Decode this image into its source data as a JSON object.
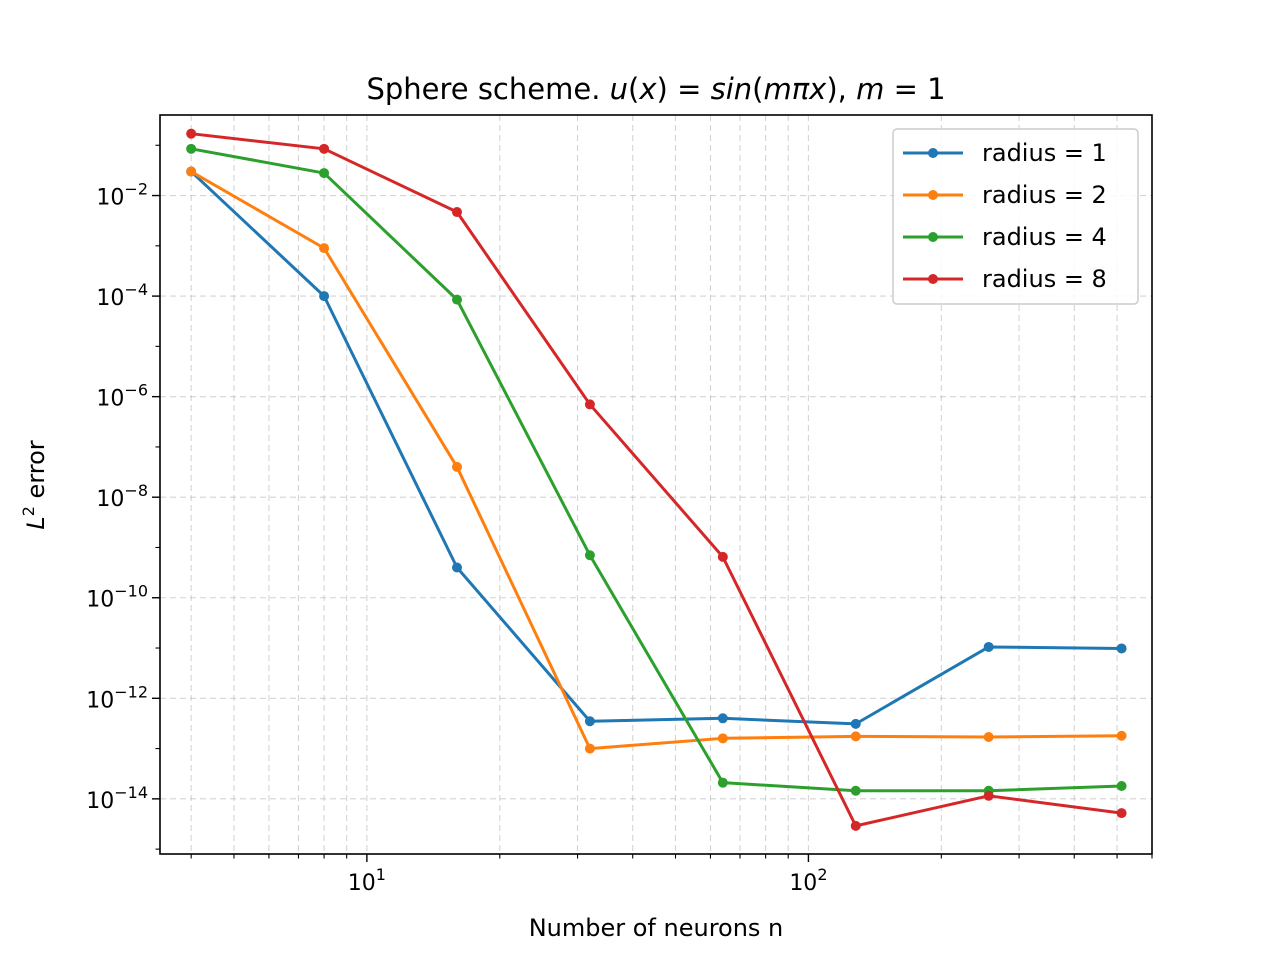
{
  "chart_data": {
    "type": "line",
    "title": "Sphere scheme. u(x) = sin(mπx), m = 1",
    "title_parts": {
      "prefix": "Sphere scheme. ",
      "func": "u",
      "arg": "x",
      "equals": "=",
      "rhs": "sin",
      "rhs_arg": "mπx",
      "sep": ",",
      "param": "m",
      "param_value": "1"
    },
    "xlabel": "Number of neurons n",
    "ylabel": "L² error",
    "ylabel_parts": {
      "base": "L",
      "sup": "2",
      "rest": " error"
    },
    "xscale": "log",
    "yscale": "log",
    "xlim": [
      3.4,
      600
    ],
    "ylim": [
      8e-16,
      0.4
    ],
    "grid": true,
    "legend_position": "upper right",
    "x_tick_labels": [
      {
        "value": 10,
        "base": "10",
        "exp": "1"
      },
      {
        "value": 100,
        "base": "10",
        "exp": "2"
      }
    ],
    "y_tick_labels": [
      {
        "value": 0.01,
        "base": "10",
        "exp": "−2"
      },
      {
        "value": 0.0001,
        "base": "10",
        "exp": "−4"
      },
      {
        "value": 1e-06,
        "base": "10",
        "exp": "−6"
      },
      {
        "value": 1e-08,
        "base": "10",
        "exp": "−8"
      },
      {
        "value": 1e-10,
        "base": "10",
        "exp": "−10"
      },
      {
        "value": 1e-12,
        "base": "10",
        "exp": "−12"
      },
      {
        "value": 1e-14,
        "base": "10",
        "exp": "−14"
      }
    ],
    "x": [
      4,
      8,
      16,
      32,
      64,
      128,
      256,
      512
    ],
    "series": [
      {
        "name": "radius = 1",
        "color": "#1f77b4",
        "values": [
          0.03,
          0.0001,
          4e-10,
          3.5e-13,
          4e-13,
          3.1e-13,
          1.05e-11,
          9.8e-12
        ]
      },
      {
        "name": "radius = 2",
        "color": "#ff7f0e",
        "values": [
          0.03,
          0.0009,
          4e-08,
          1e-13,
          1.6e-13,
          1.75e-13,
          1.7e-13,
          1.8e-13
        ]
      },
      {
        "name": "radius = 4",
        "color": "#2ca02c",
        "values": [
          0.085,
          0.028,
          8.5e-05,
          7e-10,
          2.1e-14,
          1.45e-14,
          1.45e-14,
          1.8e-14
        ]
      },
      {
        "name": "radius = 8",
        "color": "#d62728",
        "values": [
          0.17,
          0.085,
          0.0047,
          7e-07,
          6.5e-10,
          2.9e-15,
          1.15e-14,
          5.2e-15
        ]
      }
    ]
  }
}
